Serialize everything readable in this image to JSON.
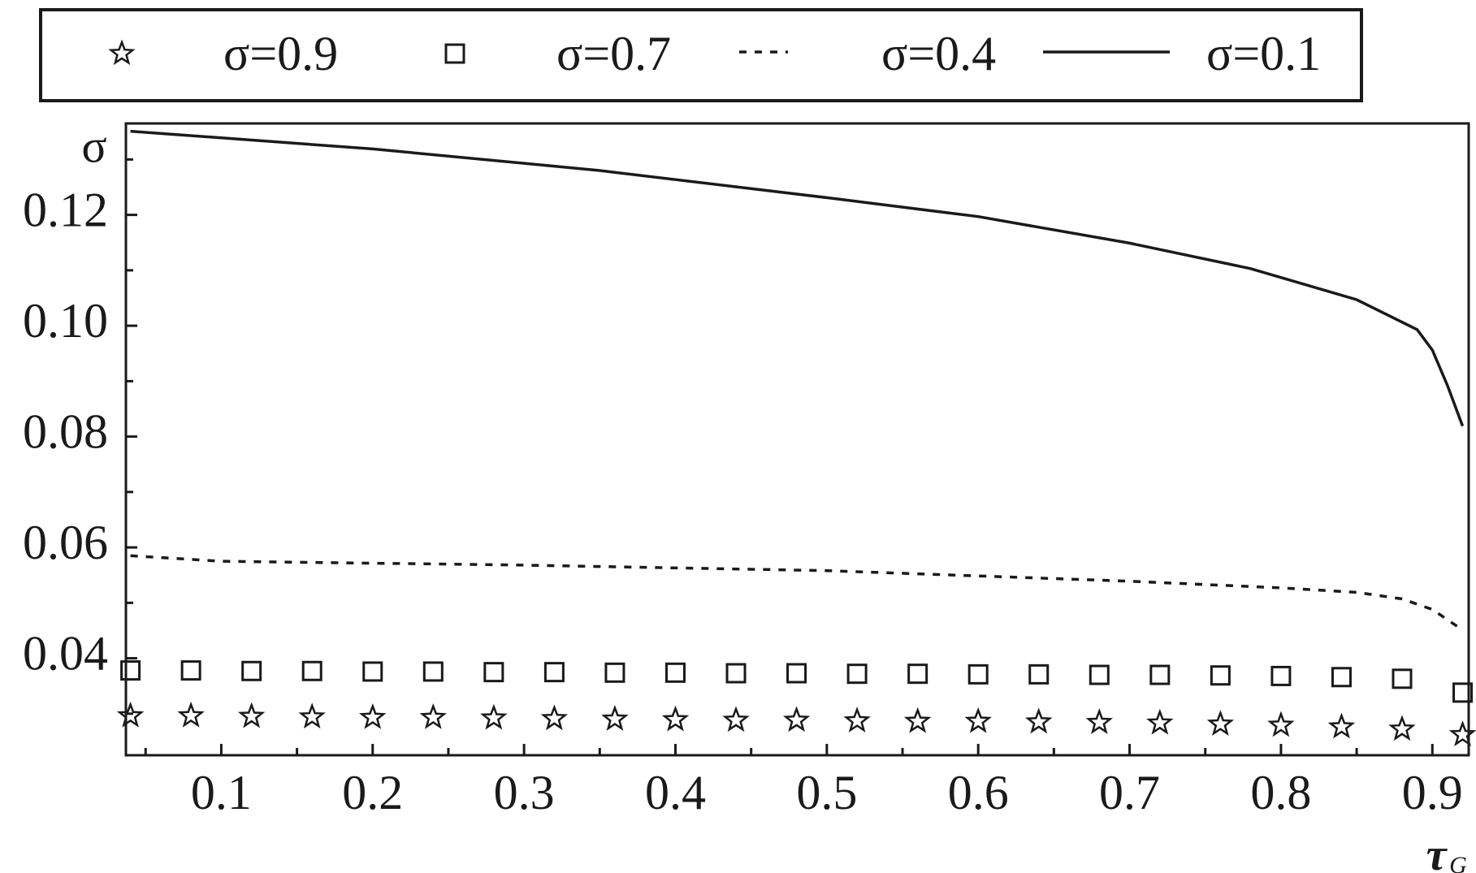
{
  "chart_data": {
    "type": "line",
    "ylabel": "σ",
    "xlabel": "τ",
    "xlabel_subscript": "G",
    "xlim": [
      0.037,
      0.924
    ],
    "ylim": [
      0.0225,
      0.1365
    ],
    "xticks": [
      0.1,
      0.2,
      0.3,
      0.4,
      0.5,
      0.6,
      0.7,
      0.8,
      0.9
    ],
    "xminorticks": [
      0.05,
      0.15,
      0.25,
      0.35,
      0.45,
      0.55,
      0.65,
      0.75,
      0.85
    ],
    "yticks": [
      0.04,
      0.06,
      0.08,
      {
        "value": 0.1,
        "label": "0.10"
      },
      0.12
    ],
    "yminorticks": [
      0.03,
      0.05,
      0.07,
      0.09,
      0.11,
      0.13
    ],
    "legend": "top-outside",
    "series": [
      {
        "name": "σ=0.9",
        "style": "star",
        "color": "#1a1a1a",
        "x": [
          0.04,
          0.08,
          0.12,
          0.16,
          0.2,
          0.24,
          0.28,
          0.32,
          0.36,
          0.4,
          0.44,
          0.48,
          0.52,
          0.56,
          0.6,
          0.64,
          0.68,
          0.72,
          0.76,
          0.8,
          0.84,
          0.88,
          0.92
        ],
        "values": [
          0.0296,
          0.0296,
          0.0295,
          0.0294,
          0.0293,
          0.0293,
          0.0292,
          0.0291,
          0.029,
          0.0289,
          0.0288,
          0.0288,
          0.0287,
          0.0286,
          0.0286,
          0.0285,
          0.0284,
          0.0283,
          0.0281,
          0.0279,
          0.0276,
          0.0272,
          0.0262
        ]
      },
      {
        "name": "σ=0.7",
        "style": "square",
        "color": "#1a1a1a",
        "x": [
          0.04,
          0.08,
          0.12,
          0.16,
          0.2,
          0.24,
          0.28,
          0.32,
          0.36,
          0.4,
          0.44,
          0.48,
          0.52,
          0.56,
          0.6,
          0.64,
          0.68,
          0.72,
          0.76,
          0.8,
          0.84,
          0.88,
          0.92
        ],
        "values": [
          0.0378,
          0.0378,
          0.0377,
          0.0377,
          0.0376,
          0.0376,
          0.0375,
          0.0375,
          0.0374,
          0.0374,
          0.0373,
          0.0373,
          0.0372,
          0.0372,
          0.0371,
          0.0371,
          0.037,
          0.037,
          0.0369,
          0.0368,
          0.0366,
          0.0363,
          0.0338
        ]
      },
      {
        "name": "σ=0.4",
        "style": "dashed",
        "color": "#1a1a1a",
        "x": [
          0.04,
          0.1,
          0.3,
          0.5,
          0.7,
          0.8,
          0.85,
          0.88,
          0.9,
          0.92
        ],
        "values": [
          0.0585,
          0.0575,
          0.0568,
          0.0558,
          0.0539,
          0.0527,
          0.0519,
          0.0507,
          0.0488,
          0.0451
        ]
      },
      {
        "name": "σ=0.1",
        "style": "solid",
        "color": "#1a1a1a",
        "x": [
          0.04,
          0.2,
          0.35,
          0.5,
          0.6,
          0.7,
          0.78,
          0.85,
          0.89,
          0.9,
          0.91,
          0.92
        ],
        "values": [
          0.1351,
          0.1319,
          0.128,
          0.1231,
          0.1197,
          0.1149,
          0.1103,
          0.1047,
          0.0993,
          0.0956,
          0.0892,
          0.0819
        ]
      }
    ]
  }
}
